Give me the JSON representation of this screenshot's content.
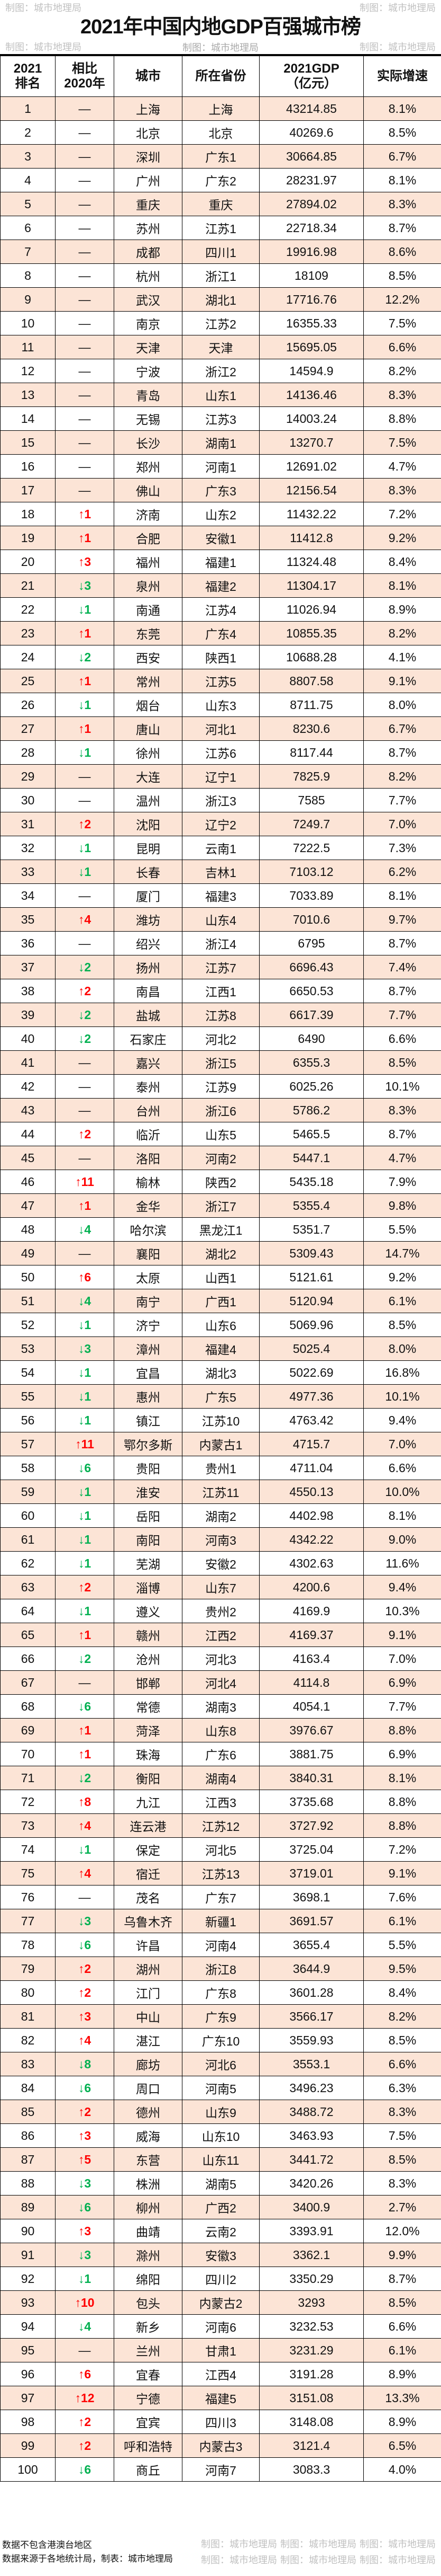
{
  "title": "2021年中国内地GDP百强城市榜",
  "subtitle": "制图：城市地理局",
  "watermark": "制图：城市地理局",
  "colors": {
    "row_highlight": "#fce4d6",
    "up": "#ff0000",
    "down": "#00b050"
  },
  "headers": {
    "rank_line1": "2021",
    "rank_line2": "排名",
    "change_line1": "相比",
    "change_line2": "2020年",
    "city": "城市",
    "province": "所在省份",
    "gdp_line1": "2021GDP",
    "gdp_line2": "（亿元）",
    "growth": "实际增速"
  },
  "rows": [
    [
      "1",
      "—",
      "上海",
      "上海",
      "43214.85",
      "8.1%"
    ],
    [
      "2",
      "—",
      "北京",
      "北京",
      "40269.6",
      "8.5%"
    ],
    [
      "3",
      "—",
      "深圳",
      "广东1",
      "30664.85",
      "6.7%"
    ],
    [
      "4",
      "—",
      "广州",
      "广东2",
      "28231.97",
      "8.1%"
    ],
    [
      "5",
      "—",
      "重庆",
      "重庆",
      "27894.02",
      "8.3%"
    ],
    [
      "6",
      "—",
      "苏州",
      "江苏1",
      "22718.34",
      "8.7%"
    ],
    [
      "7",
      "—",
      "成都",
      "四川1",
      "19916.98",
      "8.6%"
    ],
    [
      "8",
      "—",
      "杭州",
      "浙江1",
      "18109",
      "8.5%"
    ],
    [
      "9",
      "—",
      "武汉",
      "湖北1",
      "17716.76",
      "12.2%"
    ],
    [
      "10",
      "—",
      "南京",
      "江苏2",
      "16355.33",
      "7.5%"
    ],
    [
      "11",
      "—",
      "天津",
      "天津",
      "15695.05",
      "6.6%"
    ],
    [
      "12",
      "—",
      "宁波",
      "浙江2",
      "14594.9",
      "8.2%"
    ],
    [
      "13",
      "—",
      "青岛",
      "山东1",
      "14136.46",
      "8.3%"
    ],
    [
      "14",
      "—",
      "无锡",
      "江苏3",
      "14003.24",
      "8.8%"
    ],
    [
      "15",
      "—",
      "长沙",
      "湖南1",
      "13270.7",
      "7.5%"
    ],
    [
      "16",
      "—",
      "郑州",
      "河南1",
      "12691.02",
      "4.7%"
    ],
    [
      "17",
      "—",
      "佛山",
      "广东3",
      "12156.54",
      "8.3%"
    ],
    [
      "18",
      "↑1",
      "济南",
      "山东2",
      "11432.22",
      "7.2%"
    ],
    [
      "19",
      "↑1",
      "合肥",
      "安徽1",
      "11412.8",
      "9.2%"
    ],
    [
      "20",
      "↑3",
      "福州",
      "福建1",
      "11324.48",
      "8.4%"
    ],
    [
      "21",
      "↓3",
      "泉州",
      "福建2",
      "11304.17",
      "8.1%"
    ],
    [
      "22",
      "↓1",
      "南通",
      "江苏4",
      "11026.94",
      "8.9%"
    ],
    [
      "23",
      "↑1",
      "东莞",
      "广东4",
      "10855.35",
      "8.2%"
    ],
    [
      "24",
      "↓2",
      "西安",
      "陕西1",
      "10688.28",
      "4.1%"
    ],
    [
      "25",
      "↑1",
      "常州",
      "江苏5",
      "8807.58",
      "9.1%"
    ],
    [
      "26",
      "↓1",
      "烟台",
      "山东3",
      "8711.75",
      "8.0%"
    ],
    [
      "27",
      "↑1",
      "唐山",
      "河北1",
      "8230.6",
      "6.7%"
    ],
    [
      "28",
      "↓1",
      "徐州",
      "江苏6",
      "8117.44",
      "8.7%"
    ],
    [
      "29",
      "—",
      "大连",
      "辽宁1",
      "7825.9",
      "8.2%"
    ],
    [
      "30",
      "—",
      "温州",
      "浙江3",
      "7585",
      "7.7%"
    ],
    [
      "31",
      "↑2",
      "沈阳",
      "辽宁2",
      "7249.7",
      "7.0%"
    ],
    [
      "32",
      "↓1",
      "昆明",
      "云南1",
      "7222.5",
      "7.3%"
    ],
    [
      "33",
      "↓1",
      "长春",
      "吉林1",
      "7103.12",
      "6.2%"
    ],
    [
      "34",
      "—",
      "厦门",
      "福建3",
      "7033.89",
      "8.1%"
    ],
    [
      "35",
      "↑4",
      "潍坊",
      "山东4",
      "7010.6",
      "9.7%"
    ],
    [
      "36",
      "—",
      "绍兴",
      "浙江4",
      "6795",
      "8.7%"
    ],
    [
      "37",
      "↓2",
      "扬州",
      "江苏7",
      "6696.43",
      "7.4%"
    ],
    [
      "38",
      "↑2",
      "南昌",
      "江西1",
      "6650.53",
      "8.7%"
    ],
    [
      "39",
      "↓2",
      "盐城",
      "江苏8",
      "6617.39",
      "7.7%"
    ],
    [
      "40",
      "↓2",
      "石家庄",
      "河北2",
      "6490",
      "6.6%"
    ],
    [
      "41",
      "—",
      "嘉兴",
      "浙江5",
      "6355.3",
      "8.5%"
    ],
    [
      "42",
      "—",
      "泰州",
      "江苏9",
      "6025.26",
      "10.1%"
    ],
    [
      "43",
      "—",
      "台州",
      "浙江6",
      "5786.2",
      "8.3%"
    ],
    [
      "44",
      "↑2",
      "临沂",
      "山东5",
      "5465.5",
      "8.7%"
    ],
    [
      "45",
      "—",
      "洛阳",
      "河南2",
      "5447.1",
      "4.7%"
    ],
    [
      "46",
      "↑11",
      "榆林",
      "陕西2",
      "5435.18",
      "7.9%"
    ],
    [
      "47",
      "↑1",
      "金华",
      "浙江7",
      "5355.4",
      "9.8%"
    ],
    [
      "48",
      "↓4",
      "哈尔滨",
      "黑龙江1",
      "5351.7",
      "5.5%"
    ],
    [
      "49",
      "—",
      "襄阳",
      "湖北2",
      "5309.43",
      "14.7%"
    ],
    [
      "50",
      "↑6",
      "太原",
      "山西1",
      "5121.61",
      "9.2%"
    ],
    [
      "51",
      "↓4",
      "南宁",
      "广西1",
      "5120.94",
      "6.1%"
    ],
    [
      "52",
      "↓1",
      "济宁",
      "山东6",
      "5069.96",
      "8.5%"
    ],
    [
      "53",
      "↓3",
      "漳州",
      "福建4",
      "5025.4",
      "8.0%"
    ],
    [
      "54",
      "↓1",
      "宜昌",
      "湖北3",
      "5022.69",
      "16.8%"
    ],
    [
      "55",
      "↓1",
      "惠州",
      "广东5",
      "4977.36",
      "10.1%"
    ],
    [
      "56",
      "↓1",
      "镇江",
      "江苏10",
      "4763.42",
      "9.4%"
    ],
    [
      "57",
      "↑11",
      "鄂尔多斯",
      "内蒙古1",
      "4715.7",
      "7.0%"
    ],
    [
      "58",
      "↓6",
      "贵阳",
      "贵州1",
      "4711.04",
      "6.6%"
    ],
    [
      "59",
      "↓1",
      "淮安",
      "江苏11",
      "4550.13",
      "10.0%"
    ],
    [
      "60",
      "↓1",
      "岳阳",
      "湖南2",
      "4402.98",
      "8.1%"
    ],
    [
      "61",
      "↓1",
      "南阳",
      "河南3",
      "4342.22",
      "9.0%"
    ],
    [
      "62",
      "↓1",
      "芜湖",
      "安徽2",
      "4302.63",
      "11.6%"
    ],
    [
      "63",
      "↑2",
      "淄博",
      "山东7",
      "4200.6",
      "9.4%"
    ],
    [
      "64",
      "↓1",
      "遵义",
      "贵州2",
      "4169.9",
      "10.3%"
    ],
    [
      "65",
      "↑1",
      "赣州",
      "江西2",
      "4169.37",
      "9.1%"
    ],
    [
      "66",
      "↓2",
      "沧州",
      "河北3",
      "4163.4",
      "7.0%"
    ],
    [
      "67",
      "—",
      "邯郸",
      "河北4",
      "4114.8",
      "6.9%"
    ],
    [
      "68",
      "↓6",
      "常德",
      "湖南3",
      "4054.1",
      "7.7%"
    ],
    [
      "69",
      "↑1",
      "菏泽",
      "山东8",
      "3976.67",
      "8.8%"
    ],
    [
      "70",
      "↑1",
      "珠海",
      "广东6",
      "3881.75",
      "6.9%"
    ],
    [
      "71",
      "↓2",
      "衡阳",
      "湖南4",
      "3840.31",
      "8.1%"
    ],
    [
      "72",
      "↑8",
      "九江",
      "江西3",
      "3735.68",
      "8.8%"
    ],
    [
      "73",
      "↑4",
      "连云港",
      "江苏12",
      "3727.92",
      "8.8%"
    ],
    [
      "74",
      "↓1",
      "保定",
      "河北5",
      "3725.04",
      "7.2%"
    ],
    [
      "75",
      "↑4",
      "宿迁",
      "江苏13",
      "3719.01",
      "9.1%"
    ],
    [
      "76",
      "—",
      "茂名",
      "广东7",
      "3698.1",
      "7.6%"
    ],
    [
      "77",
      "↓3",
      "乌鲁木齐",
      "新疆1",
      "3691.57",
      "6.1%"
    ],
    [
      "78",
      "↓6",
      "许昌",
      "河南4",
      "3655.4",
      "5.5%"
    ],
    [
      "79",
      "↑2",
      "湖州",
      "浙江8",
      "3644.9",
      "9.5%"
    ],
    [
      "80",
      "↑2",
      "江门",
      "广东8",
      "3601.28",
      "8.4%"
    ],
    [
      "81",
      "↑3",
      "中山",
      "广东9",
      "3566.17",
      "8.2%"
    ],
    [
      "82",
      "↑4",
      "湛江",
      "广东10",
      "3559.93",
      "8.5%"
    ],
    [
      "83",
      "↓8",
      "廊坊",
      "河北6",
      "3553.1",
      "6.6%"
    ],
    [
      "84",
      "↓6",
      "周口",
      "河南5",
      "3496.23",
      "6.3%"
    ],
    [
      "85",
      "↑2",
      "德州",
      "山东9",
      "3488.72",
      "8.3%"
    ],
    [
      "86",
      "↑3",
      "威海",
      "山东10",
      "3463.93",
      "7.5%"
    ],
    [
      "87",
      "↑5",
      "东营",
      "山东11",
      "3441.72",
      "8.5%"
    ],
    [
      "88",
      "↓3",
      "株洲",
      "湖南5",
      "3420.26",
      "8.3%"
    ],
    [
      "89",
      "↓6",
      "柳州",
      "广西2",
      "3400.9",
      "2.7%"
    ],
    [
      "90",
      "↑3",
      "曲靖",
      "云南2",
      "3393.91",
      "12.0%"
    ],
    [
      "91",
      "↓3",
      "滁州",
      "安徽3",
      "3362.1",
      "9.9%"
    ],
    [
      "92",
      "↓1",
      "绵阳",
      "四川2",
      "3350.29",
      "8.7%"
    ],
    [
      "93",
      "↑10",
      "包头",
      "内蒙古2",
      "3293",
      "8.5%"
    ],
    [
      "94",
      "↓4",
      "新乡",
      "河南6",
      "3232.53",
      "6.6%"
    ],
    [
      "95",
      "—",
      "兰州",
      "甘肃1",
      "3231.29",
      "6.1%"
    ],
    [
      "96",
      "↑6",
      "宜春",
      "江西4",
      "3191.28",
      "8.9%"
    ],
    [
      "97",
      "↑12",
      "宁德",
      "福建5",
      "3151.08",
      "13.3%"
    ],
    [
      "98",
      "↑2",
      "宜宾",
      "四川3",
      "3148.08",
      "8.9%"
    ],
    [
      "99",
      "↑2",
      "呼和浩特",
      "内蒙古3",
      "3121.4",
      "6.5%"
    ],
    [
      "100",
      "↓6",
      "商丘",
      "河南7",
      "3083.3",
      "4.0%"
    ]
  ],
  "footer": {
    "note1": "数据不包含港澳台地区",
    "note2": "数据来源于各地统计局，制表：城市地理局"
  }
}
